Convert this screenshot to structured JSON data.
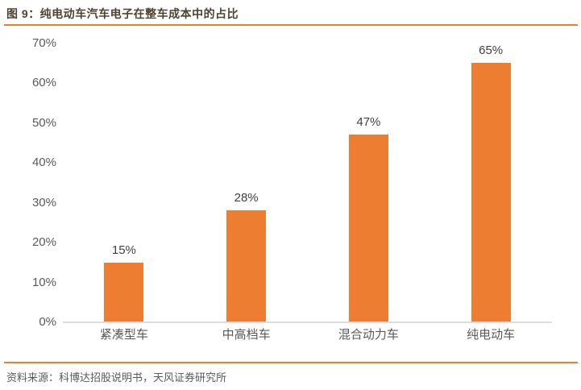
{
  "header": {
    "title": "图 9：纯电动车汽车电子在整车成本中的占比"
  },
  "footer": {
    "source": "资料来源：科博达招股说明书，天风证券研究所"
  },
  "colors": {
    "bar": "#ed7d31",
    "rule": "#ee7f27",
    "axis": "#dcdcdc",
    "title": "#4d4233",
    "label": "#595959",
    "value": "#3f3f3f"
  },
  "chart_data": {
    "type": "bar",
    "title": "纯电动车汽车电子在整车成本中的占比",
    "categories": [
      "紧凑型车",
      "中高档车",
      "混合动力车",
      "纯电动车"
    ],
    "values": [
      15,
      28,
      47,
      65
    ],
    "value_labels": [
      "15%",
      "28%",
      "47%",
      "65%"
    ],
    "xlabel": "",
    "ylabel": "",
    "ylim": [
      0,
      70
    ],
    "ytick_step": 10,
    "ytick_labels": [
      "0%",
      "10%",
      "20%",
      "30%",
      "40%",
      "50%",
      "60%",
      "70%"
    ],
    "grid": false,
    "legend": "none",
    "data_labels": true,
    "bar_color": "#ed7d31"
  }
}
